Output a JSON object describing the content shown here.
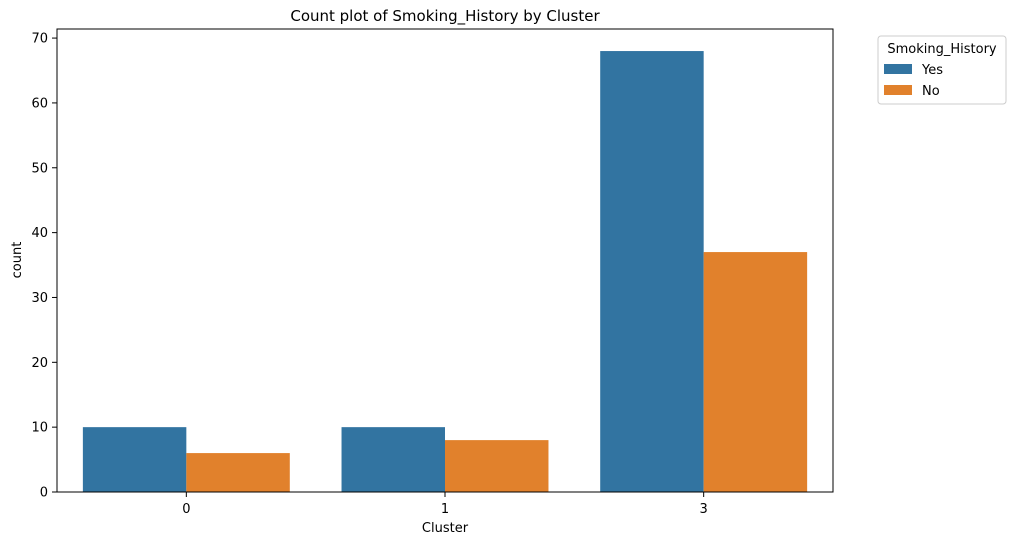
{
  "chart_data": {
    "type": "bar",
    "title": "Count plot of Smoking_History by Cluster",
    "xlabel": "Cluster",
    "ylabel": "count",
    "categories": [
      "0",
      "1",
      "3"
    ],
    "series": [
      {
        "name": "Yes",
        "values": [
          10,
          10,
          68
        ],
        "color": "#3274a1"
      },
      {
        "name": "No",
        "values": [
          6,
          8,
          37
        ],
        "color": "#e1812c"
      }
    ],
    "ylim": [
      0,
      71.4
    ],
    "yticks": [
      0,
      10,
      20,
      30,
      40,
      50,
      60,
      70
    ],
    "grid": false,
    "legend": {
      "title": "Smoking_History",
      "placement": "outside-top-right"
    }
  }
}
